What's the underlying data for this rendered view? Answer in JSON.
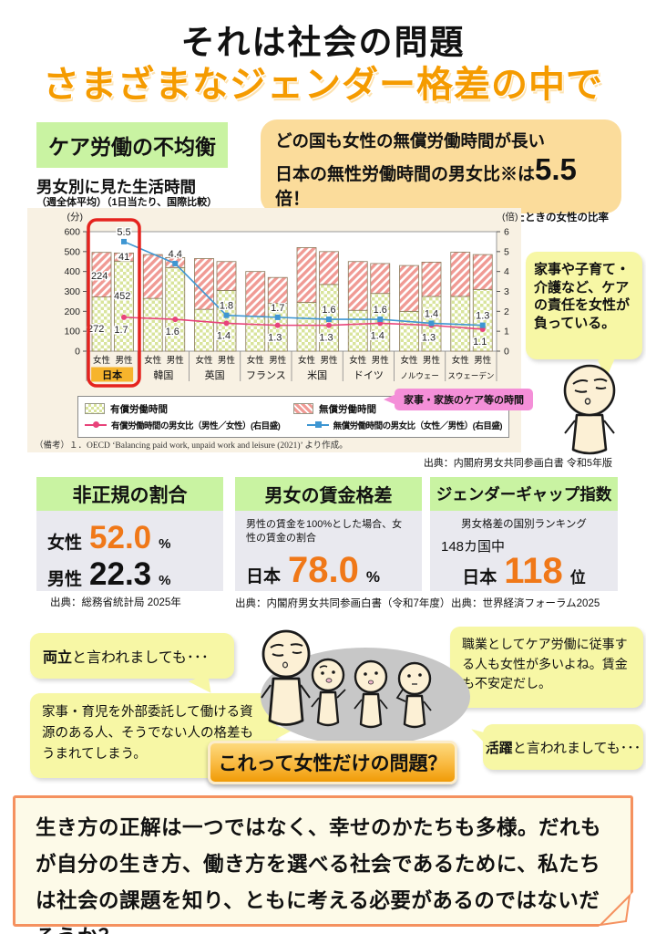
{
  "page": {
    "title_line1": "それは社会の問題",
    "title_line2": "さまざまなジェンダー格差の中で"
  },
  "colors": {
    "accent_orange": "#f59b00",
    "number_orange": "#f07818",
    "section_green": "#c9f3a2",
    "bubble_orange": "#fbdc9b",
    "bubble_yellow": "#f7f7a5",
    "panel_cream": "#f8f1e3",
    "bar_paid_green": "#d9e49c",
    "bar_unpaid_red": "#f09a94",
    "line_paid_pink": "#e8437a",
    "line_unpaid_blue": "#3e96d2",
    "callout_pink": "#f48fd8",
    "highlight_japan": "#f6b42c",
    "red_frame": "#e5231e"
  },
  "care_section": {
    "label": "ケア労働の不均衡",
    "chart_title": "男女別に見た生活時間",
    "chart_subtitle": "（週全体平均）（1日当たり、国際比較）",
    "top_bubble": {
      "line1": "どの国も女性の無償労働時間が長い",
      "line2_pre": "日本の無性労働時間の男女比※は",
      "line2_value": "5.5",
      "line2_suffix": "倍！",
      "note": "※男性1としたときの女性の比率"
    },
    "side_bubble": "家事や子育て・介護など、ケアの責任を女性が負っている。",
    "remark": "（備考）１．OECD ‘Balancing paid work, unpaid work and leisure (2021)’ より作成。",
    "source": "出典：内閣府男女共同参画白書 令和5年版"
  },
  "chart_data": {
    "type": "bar",
    "subtype": "stacked bars (minutes/day) + ratio lines on right axis",
    "title": "男女別に見た生活時間",
    "subtitle": "（週全体平均）（1日当たり、国際比較）",
    "ylabel_left": "(分)",
    "ylabel_right": "(倍)",
    "ylim_left": [
      0,
      600
    ],
    "ytick_step_left": 100,
    "ylim_right": [
      0,
      6
    ],
    "ytick_step_right": 1,
    "categories": [
      "日本",
      "韓国",
      "英国",
      "フランス",
      "米国",
      "ドイツ",
      "ノルウェー",
      "スウェーデン"
    ],
    "gender_labels": [
      "女性",
      "男性"
    ],
    "highlight_category": "日本",
    "bars_female": {
      "paid": [
        272,
        265,
        210,
        175,
        245,
        205,
        200,
        275
      ],
      "unpaid": [
        224,
        220,
        255,
        225,
        275,
        245,
        230,
        222
      ]
    },
    "bars_male": {
      "paid": [
        452,
        420,
        305,
        240,
        335,
        290,
        275,
        310
      ],
      "unpaid": [
        41,
        50,
        145,
        130,
        165,
        150,
        172,
        175
      ]
    },
    "line_paid_ratio": {
      "name": "有償労働時間の男女比（男性／女性）(右目盛)",
      "values": [
        1.7,
        1.6,
        1.4,
        1.3,
        1.3,
        1.4,
        1.3,
        1.1
      ],
      "color": "#e8437a"
    },
    "line_unpaid_ratio": {
      "name": "無償労働時間の男女比（女性／男性）(右目盛)",
      "values": [
        5.5,
        4.4,
        1.8,
        1.7,
        1.6,
        1.6,
        1.4,
        1.3
      ],
      "color": "#3e96d2"
    },
    "legend_paid": "有償労働時間",
    "legend_unpaid": "無償労働時間",
    "callout": "家事・家族のケア等の時間",
    "japan_bar_labels": {
      "female_paid": "272",
      "female_unpaid": "224",
      "male_paid": "452",
      "male_unpaid": "41"
    },
    "legend_position": "bottom",
    "grid": false
  },
  "stat_boxes": {
    "nonregular": {
      "title": "非正規の割合",
      "rows": [
        {
          "label": "女性",
          "value": "52.0",
          "unit": "%"
        },
        {
          "label": "男性",
          "value": "22.3",
          "unit": "%"
        }
      ],
      "source": "出典：総務省統計局  2025年"
    },
    "wage_gap": {
      "title": "男女の賃金格差",
      "desc": "男性の賃金を100%とした場合、女性の賃金の割合",
      "label": "日本",
      "value": "78.0",
      "unit": "%",
      "source": "出典：内閣府男女共同参画白書（令和7年度）"
    },
    "ggi": {
      "title": "ジェンダーギャップ指数",
      "desc": "男女格差の国別ランキング",
      "pre": "148カ国中",
      "label": "日本",
      "value": "118",
      "unit": "位",
      "source": "出典：世界経済フォーラム2025"
    }
  },
  "discussion": {
    "bubble1_bold": "両立",
    "bubble1_rest": "と言われましても･･･",
    "bubble2": "家事・育児を外部委託して働ける資源のある人、そうでない人の格差もうまれてしまう。",
    "bubble3": "職業としてケア労働に従事する人も女性が多いよね。賃金も不安定だし。",
    "bubble4_bold": "活躍",
    "bubble4_rest": "と言われましても･･･",
    "banner": "これって女性だけの問題？"
  },
  "footer": {
    "message": "生き方の正解は一つではなく、幸せのかたちも多様。だれもが自分の生き方、働き方を選べる社会であるために、私たちは社会の課題を知り、ともに考える必要があるのではないだろうか？"
  }
}
